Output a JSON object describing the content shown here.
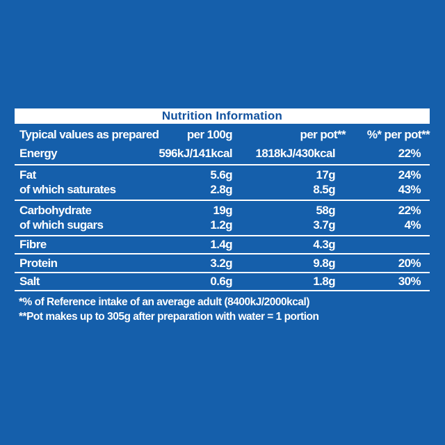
{
  "panel": {
    "title": "Nutrition Information"
  },
  "table": {
    "columns": [
      "Typical values as prepared",
      "per 100g",
      "per pot**",
      "%* per pot**"
    ],
    "rows": [
      {
        "label": "Energy",
        "per100g": "596kJ/141kcal",
        "perPot": "1818kJ/430kcal",
        "pct": "22%"
      },
      {
        "label": "Fat",
        "per100g": "5.6g",
        "perPot": "17g",
        "pct": "24%"
      },
      {
        "label": "of which saturates",
        "per100g": "2.8g",
        "perPot": "8.5g",
        "pct": "43%"
      },
      {
        "label": "Carbohydrate",
        "per100g": "19g",
        "perPot": "58g",
        "pct": "22%"
      },
      {
        "label": "of which sugars",
        "per100g": "1.2g",
        "perPot": "3.7g",
        "pct": "4%"
      },
      {
        "label": "Fibre",
        "per100g": "1.4g",
        "perPot": "4.3g",
        "pct": ""
      },
      {
        "label": "Protein",
        "per100g": "3.2g",
        "perPot": "9.8g",
        "pct": "20%"
      },
      {
        "label": "Salt",
        "per100g": "0.6g",
        "perPot": "1.8g",
        "pct": "30%"
      }
    ],
    "footnotes": [
      "*% of Reference intake of an average adult (8400kJ/2000kcal)",
      "**Pot makes up to 305g after preparation with water = 1 portion"
    ]
  },
  "colors": {
    "background": "#155fab",
    "title_bar": "#ffffff",
    "title_text": "#11519e",
    "table_text": "#ffffff",
    "divider": "#ffffff"
  }
}
